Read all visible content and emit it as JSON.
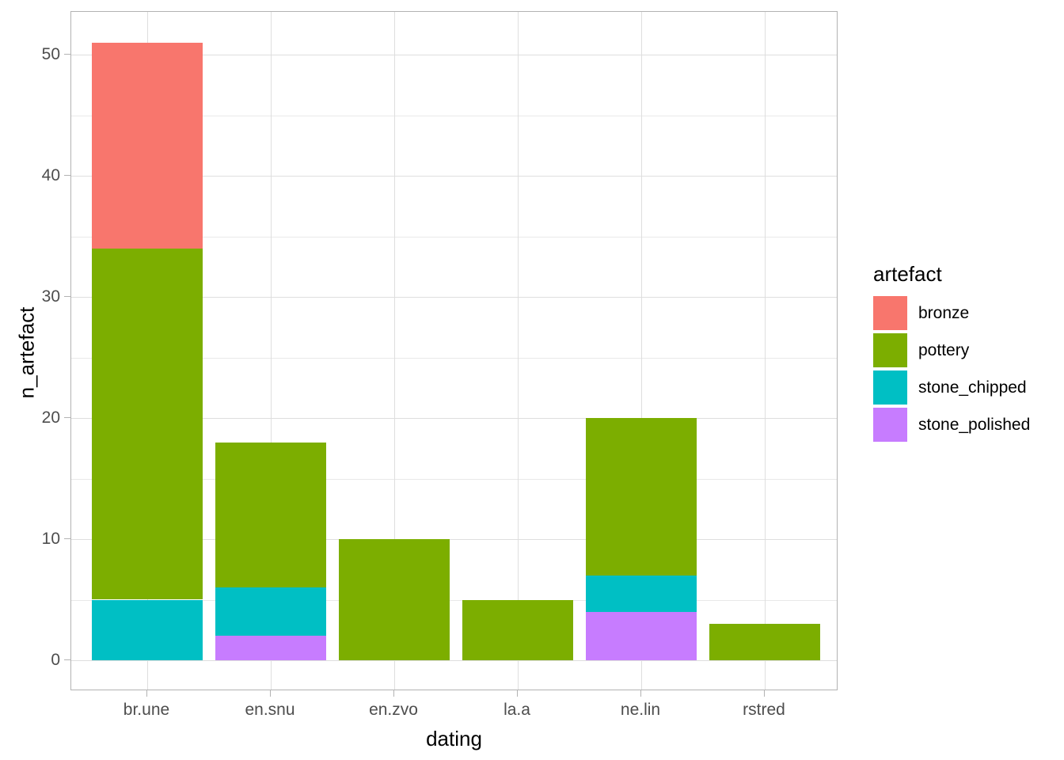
{
  "chart_data": {
    "type": "bar",
    "stacked": true,
    "title": "",
    "xlabel": "dating",
    "ylabel": "n_artefact",
    "legend_title": "artefact",
    "legend_position": "right",
    "grid": true,
    "categories": [
      "br.une",
      "en.snu",
      "en.zvo",
      "la.a",
      "ne.lin",
      "rstred"
    ],
    "series": [
      {
        "name": "bronze",
        "color": "#F8766D",
        "values": [
          17,
          0,
          0,
          0,
          0,
          0
        ]
      },
      {
        "name": "pottery",
        "color": "#7CAE00",
        "values": [
          29,
          12,
          10,
          5,
          13,
          3
        ]
      },
      {
        "name": "stone_chipped",
        "color": "#00BFC4",
        "values": [
          5,
          4,
          0,
          0,
          3,
          0
        ]
      },
      {
        "name": "stone_polished",
        "color": "#C77CFF",
        "values": [
          0,
          2,
          0,
          0,
          4,
          0
        ]
      }
    ],
    "stack_order": [
      "stone_polished",
      "stone_chipped",
      "pottery",
      "bronze"
    ],
    "totals": [
      51,
      18,
      10,
      5,
      20,
      3
    ],
    "yticks": [
      0,
      10,
      20,
      30,
      40,
      50
    ],
    "yticks_minor": [
      5,
      15,
      25,
      35,
      45
    ],
    "ylim": [
      -2.55,
      53.55
    ]
  }
}
